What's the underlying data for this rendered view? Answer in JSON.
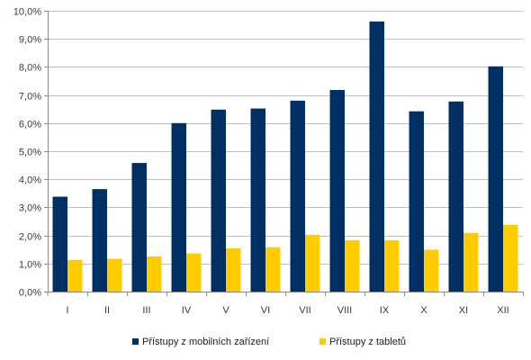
{
  "chart_data": {
    "type": "bar",
    "categories": [
      "I",
      "II",
      "III",
      "IV",
      "V",
      "VI",
      "VII",
      "VIII",
      "IX",
      "X",
      "XI",
      "XII"
    ],
    "series": [
      {
        "name": "Přístupy z mobilních zařízení",
        "color": "#002f63",
        "values": [
          3.38,
          3.65,
          4.58,
          6.0,
          6.48,
          6.52,
          6.8,
          7.18,
          9.62,
          6.42,
          6.77,
          8.02
        ]
      },
      {
        "name": "Přístupy z tabletů",
        "color": "#ffcc00",
        "values": [
          1.13,
          1.17,
          1.25,
          1.36,
          1.54,
          1.58,
          2.02,
          1.83,
          1.83,
          1.49,
          2.09,
          2.38
        ]
      }
    ],
    "ylim": [
      0,
      10
    ],
    "yticks": [
      "0,0%",
      "1,0%",
      "2,0%",
      "3,0%",
      "4,0%",
      "5,0%",
      "6,0%",
      "7,0%",
      "8,0%",
      "9,0%",
      "10,0%"
    ],
    "grid": true,
    "legend_position": "bottom",
    "xlabel": "",
    "ylabel": "",
    "title": ""
  }
}
